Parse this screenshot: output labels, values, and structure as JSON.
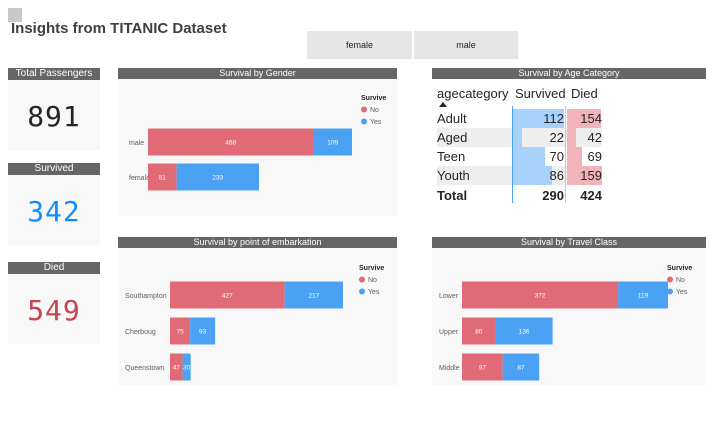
{
  "report_title": "Insights from TITANIC Dataset",
  "slicer": {
    "options": [
      "female",
      "male"
    ]
  },
  "kpis": {
    "total": {
      "label": "Total Passengers",
      "value": "891"
    },
    "survived": {
      "label": "Survived",
      "value": "342",
      "color": "#118dff"
    },
    "died": {
      "label": "Died",
      "value": "549",
      "color": "#c8424f"
    }
  },
  "colors": {
    "no": "#e06b76",
    "yes": "#4ba2f5",
    "header_bar": "#666666",
    "panel_bg": "#f8f8f8"
  },
  "age_table": {
    "title": "Survival by Age Category",
    "headers": [
      "agecategory",
      "Survived",
      "Died"
    ],
    "rows": [
      {
        "category": "Adult",
        "survived": "112",
        "died": "154"
      },
      {
        "category": "Aged",
        "survived": "22",
        "died": "42"
      },
      {
        "category": "Teen",
        "survived": "70",
        "died": "69"
      },
      {
        "category": "Youth",
        "survived": "86",
        "died": "159"
      }
    ],
    "total": {
      "label": "Total",
      "survived": "290",
      "died": "424"
    }
  },
  "chart_data": [
    {
      "type": "bar",
      "title": "Survival by Gender",
      "legend_title": "Survive",
      "legend_position": "top-right",
      "categories": [
        "male",
        "female"
      ],
      "series": [
        {
          "name": "No",
          "values": [
            468,
            81
          ],
          "color": "#e06b76"
        },
        {
          "name": "Yes",
          "values": [
            109,
            233
          ],
          "color": "#4ba2f5"
        }
      ]
    },
    {
      "type": "bar",
      "title": "Survival by point of embarkation",
      "legend_title": "Survive",
      "legend_position": "top-right",
      "categories": [
        "Southampton",
        "Cherboug",
        "Queenstown"
      ],
      "series": [
        {
          "name": "No",
          "values": [
            427,
            75,
            47
          ],
          "color": "#e06b76"
        },
        {
          "name": "Yes",
          "values": [
            217,
            93,
            30
          ],
          "color": "#4ba2f5"
        }
      ]
    },
    {
      "type": "bar",
      "title": "Survival by Travel Class",
      "legend_title": "Survive",
      "legend_position": "top-right",
      "categories": [
        "Lower",
        "Upper",
        "Middle"
      ],
      "series": [
        {
          "name": "No",
          "values": [
            372,
            80,
            97
          ],
          "color": "#e06b76"
        },
        {
          "name": "Yes",
          "values": [
            119,
            136,
            87
          ],
          "color": "#4ba2f5"
        }
      ]
    }
  ]
}
